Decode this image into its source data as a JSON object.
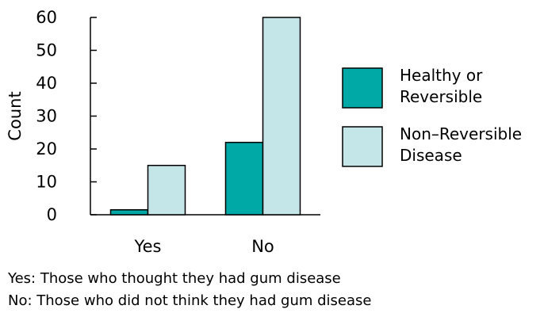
{
  "chart_data": {
    "type": "bar",
    "categories": [
      "Yes",
      "No"
    ],
    "series": [
      {
        "name": "Healthy or Reversible",
        "values": [
          1.5,
          22
        ],
        "color": "#00a9a5"
      },
      {
        "name": "Non–Reversible Disease",
        "values": [
          15,
          60
        ],
        "color": "#c5e6e9"
      }
    ],
    "legend_lines": [
      [
        "Healthy or",
        "Reversible"
      ],
      [
        "Non–Reversible",
        "Disease"
      ]
    ],
    "ylabel": "Count",
    "xlabel": "",
    "ylim": [
      0,
      60
    ],
    "yticks": [
      0,
      10,
      20,
      30,
      40,
      50,
      60
    ],
    "grid": false,
    "legend_placement": "right"
  },
  "footnotes": [
    "Yes: Those who thought they had gum disease",
    "No: Those who did not think they had gum disease"
  ]
}
